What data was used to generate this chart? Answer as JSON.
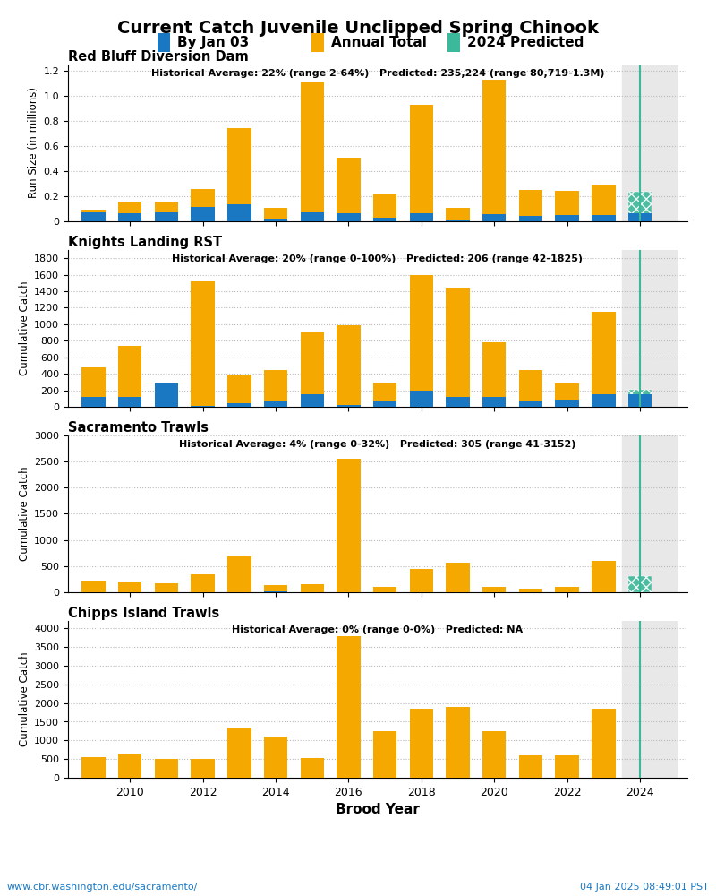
{
  "title": "Current Catch Juvenile Unclipped Spring Chinook",
  "legend_items": [
    "By Jan 03",
    "Annual Total",
    "2024 Predicted"
  ],
  "legend_colors": [
    "#1a78c2",
    "#f5a800",
    "#3cb89a"
  ],
  "footer_left": "www.cbr.washington.edu/sacramento/",
  "footer_right": "04 Jan 2025 08:49:01 PST",
  "xlabel": "Brood Year",
  "subplots": [
    {
      "title": "Red Bluff Diversion Dam",
      "annotation": "Historical Average: 22% (range 2-64%)   Predicted: 235,224 (range 80,719-1.3M)",
      "ylabel": "Run Size (in millions)",
      "years": [
        2009,
        2010,
        2011,
        2012,
        2013,
        2014,
        2015,
        2016,
        2017,
        2018,
        2019,
        2020,
        2021,
        2022,
        2023,
        2024
      ],
      "blue_values": [
        0.07,
        0.065,
        0.07,
        0.115,
        0.135,
        0.02,
        0.07,
        0.065,
        0.025,
        0.065,
        0.005,
        0.06,
        0.04,
        0.05,
        0.05,
        0.065
      ],
      "orange_values": [
        0.025,
        0.095,
        0.085,
        0.14,
        0.61,
        0.085,
        1.04,
        0.445,
        0.195,
        0.86,
        0.105,
        1.065,
        0.21,
        0.195,
        0.245,
        0.0
      ],
      "predicted_value": 0.235,
      "ylim": [
        0,
        1.25
      ],
      "yticks": [
        0,
        0.2,
        0.4,
        0.6,
        0.8,
        1.0,
        1.2
      ]
    },
    {
      "title": "Knights Landing RST",
      "annotation": "Historical Average: 20% (range 0-100%)   Predicted: 206 (range 42-1825)",
      "ylabel": "Cumulative Catch",
      "years": [
        2009,
        2010,
        2011,
        2012,
        2013,
        2014,
        2015,
        2016,
        2017,
        2018,
        2019,
        2020,
        2021,
        2022,
        2023,
        2024
      ],
      "blue_values": [
        120,
        115,
        280,
        15,
        40,
        70,
        155,
        25,
        75,
        200,
        115,
        115,
        60,
        85,
        150,
        150
      ],
      "orange_values": [
        360,
        625,
        10,
        1500,
        350,
        370,
        750,
        960,
        220,
        1400,
        1330,
        665,
        390,
        195,
        1000,
        0
      ],
      "predicted_value": 206,
      "ylim": [
        0,
        1900
      ],
      "yticks": [
        0,
        200,
        400,
        600,
        800,
        1000,
        1200,
        1400,
        1600,
        1800
      ]
    },
    {
      "title": "Sacramento Trawls",
      "annotation": "Historical Average: 4% (range 0-32%)   Predicted: 305 (range 41-3152)",
      "ylabel": "Cumulative Catch",
      "years": [
        2009,
        2010,
        2011,
        2012,
        2013,
        2014,
        2015,
        2016,
        2017,
        2018,
        2019,
        2020,
        2021,
        2022,
        2023,
        2024
      ],
      "blue_values": [
        0,
        0,
        0,
        0,
        0,
        10,
        0,
        0,
        0,
        0,
        0,
        0,
        0,
        0,
        0,
        0
      ],
      "orange_values": [
        230,
        200,
        170,
        340,
        680,
        130,
        150,
        2560,
        110,
        450,
        570,
        100,
        60,
        110,
        600,
        0
      ],
      "predicted_value": 305,
      "ylim": [
        0,
        3000
      ],
      "yticks": [
        0,
        500,
        1000,
        1500,
        2000,
        2500,
        3000
      ]
    },
    {
      "title": "Chipps Island Trawls",
      "annotation": "Historical Average: 0% (range 0-0%)   Predicted: NA",
      "ylabel": "Cumulative Catch",
      "years": [
        2009,
        2010,
        2011,
        2012,
        2013,
        2014,
        2015,
        2016,
        2017,
        2018,
        2019,
        2020,
        2021,
        2022,
        2023,
        2024
      ],
      "blue_values": [
        0,
        0,
        0,
        0,
        0,
        0,
        0,
        0,
        0,
        0,
        0,
        0,
        0,
        0,
        0,
        0
      ],
      "orange_values": [
        540,
        650,
        500,
        500,
        1350,
        1100,
        520,
        3800,
        1250,
        1850,
        1900,
        1250,
        600,
        600,
        1850,
        0
      ],
      "predicted_value": null,
      "ylim": [
        0,
        4200
      ],
      "yticks": [
        0,
        500,
        1000,
        1500,
        2000,
        2500,
        3000,
        3500,
        4000
      ]
    }
  ],
  "blue_color": "#1a78c2",
  "orange_color": "#f5a800",
  "predicted_color": "#3cb89a",
  "vline_color": "#3cb89a",
  "bar_width": 0.65,
  "grid_color": "#bbbbbb"
}
